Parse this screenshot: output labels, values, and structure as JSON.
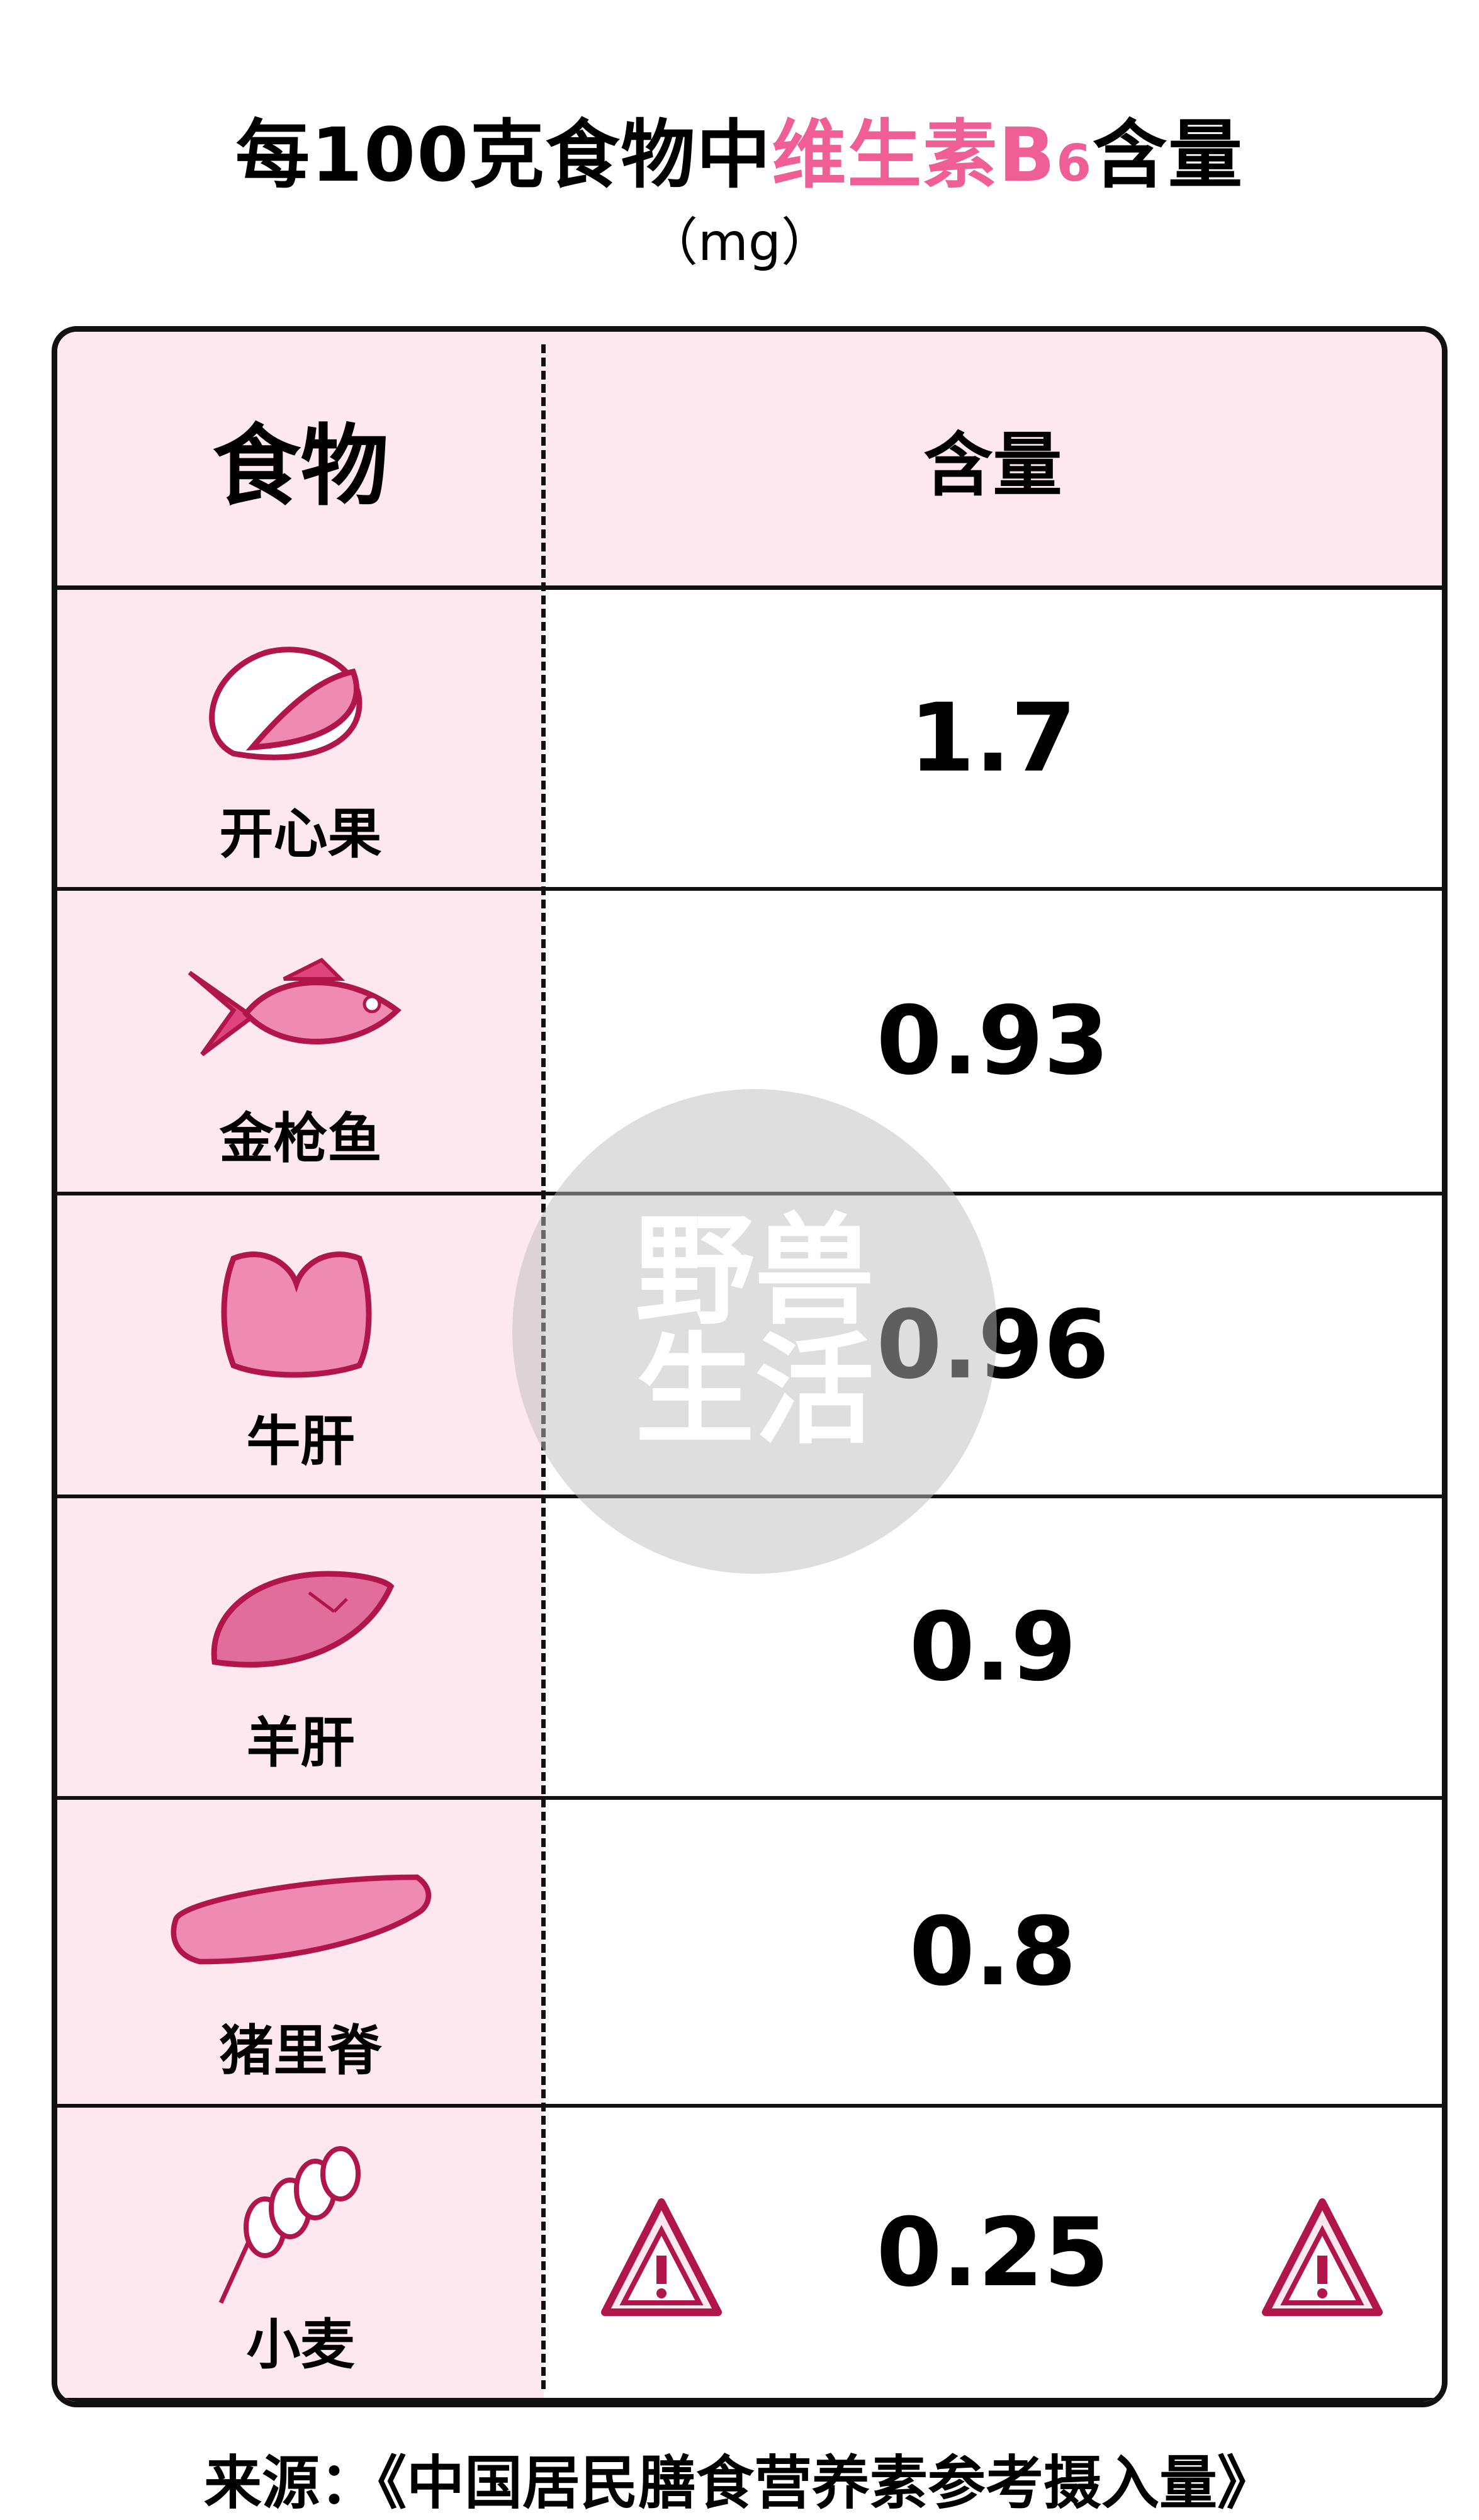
{
  "title": {
    "prefix": "每100克食物中",
    "highlight": "维生素B",
    "subscript": "6",
    "suffix": "含量"
  },
  "unit": "（mg）",
  "header": {
    "food": "食物",
    "amount": "含量"
  },
  "rows": [
    {
      "food": "开心果",
      "icon": "pistachio-icon",
      "value": "1.7"
    },
    {
      "food": "金枪鱼",
      "icon": "tuna-fish-icon",
      "value": "0.93"
    },
    {
      "food": "牛肝",
      "icon": "beef-liver-icon",
      "value": "0.96"
    },
    {
      "food": "羊肝",
      "icon": "lamb-liver-icon",
      "value": "0.9"
    },
    {
      "food": "猪里脊",
      "icon": "pork-tenderloin-icon",
      "value": "0.8"
    },
    {
      "food": "小麦",
      "icon": "wheat-icon",
      "value": "0.25",
      "warning": true
    }
  ],
  "watermark": [
    "野兽",
    "生活"
  ],
  "footer": "来源：《中国居民膳食营养素参考摄入量》",
  "colors": {
    "accent": "#ef5f96",
    "header_bg": "#fde8f0",
    "icon_stroke": "#b0164a",
    "icon_fill": "#ef8ab0"
  }
}
